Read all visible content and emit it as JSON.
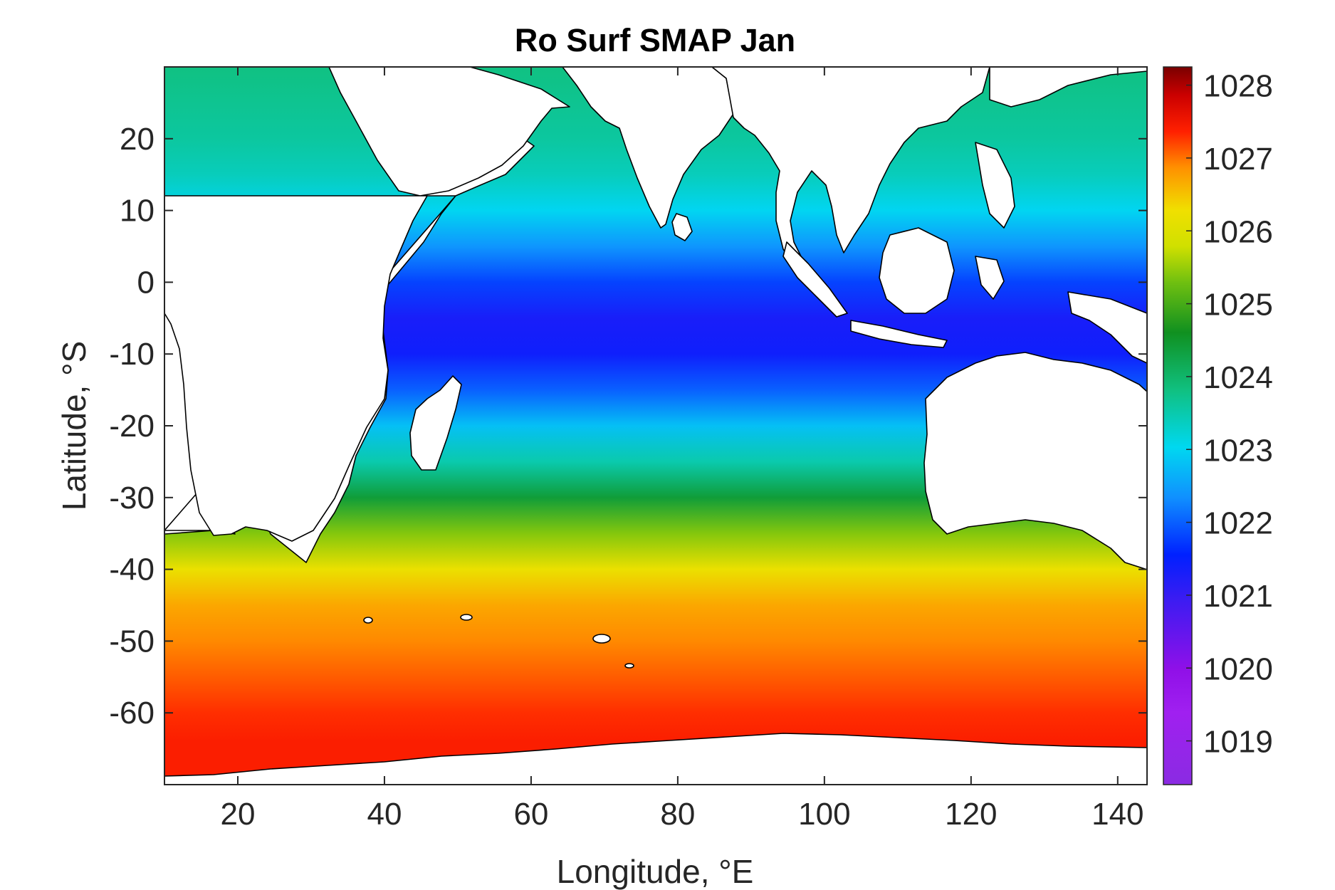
{
  "chart_data": {
    "type": "heatmap",
    "title": "Ro Surf SMAP Jan",
    "xlabel": "Longitude, °E",
    "ylabel": "Latitude, °S",
    "xlim": [
      10,
      144
    ],
    "ylim": [
      -70,
      30
    ],
    "xticks": [
      20,
      40,
      60,
      80,
      100,
      120,
      140
    ],
    "xtick_labels": [
      "20",
      "40",
      "60",
      "80",
      "100",
      "120",
      "140"
    ],
    "yticks": [
      20,
      10,
      0,
      -10,
      -20,
      -30,
      -40,
      -50,
      -60
    ],
    "ytick_labels": [
      "20",
      "10",
      "0",
      "-10",
      "-20",
      "-30",
      "-40",
      "-50",
      "-60"
    ],
    "colorbar": {
      "range": [
        1018.4,
        1028.25
      ],
      "ticks": [
        1019,
        1020,
        1021,
        1022,
        1023,
        1024,
        1025,
        1026,
        1027,
        1028
      ],
      "tick_labels": [
        "1019",
        "1020",
        "1021",
        "1022",
        "1023",
        "1024",
        "1025",
        "1026",
        "1027",
        "1028"
      ],
      "colormap": "jet-like (violet to dark red)"
    },
    "grid": false,
    "background_land_color": "#ffffff",
    "coastline_color": "#000000",
    "zonal_mean_profile": {
      "lat": [
        -70,
        -64,
        -60,
        -55,
        -50,
        -45,
        -40,
        -35,
        -30,
        -25,
        -20,
        -15,
        -10,
        -5,
        0,
        5,
        10,
        15,
        20,
        25,
        30
      ],
      "value": [
        1027.4,
        1027.4,
        1027.3,
        1027.1,
        1026.9,
        1026.7,
        1026.2,
        1025.4,
        1024.4,
        1023.5,
        1022.8,
        1022.0,
        1021.4,
        1021.3,
        1021.8,
        1022.4,
        1023.0,
        1023.4,
        1023.6,
        1023.7,
        1023.8
      ]
    }
  }
}
